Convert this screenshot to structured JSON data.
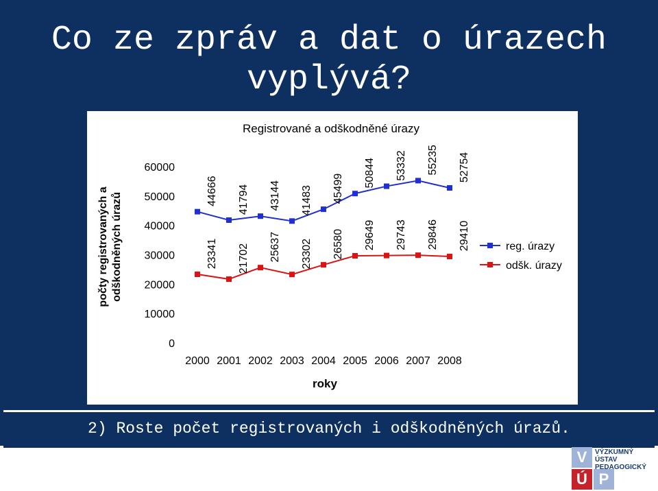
{
  "slide": {
    "title": "Co ze zpráv a dat o úrazech vyplývá?",
    "footer": "2) Roste počet registrovaných i odškodněných úrazů."
  },
  "logo": {
    "tiles": [
      "V",
      "Ú",
      "P"
    ],
    "lines": [
      "VÝZKUMNÝ",
      "ÚSTAV",
      "PEDAGOGICKÝ"
    ]
  },
  "colors": {
    "background": "#0d3060",
    "series_reg": "#1f2fd0",
    "series_odsk": "#d81414",
    "logo_blue": "#9fb3d9",
    "logo_red": "#c4232b"
  },
  "chart_data": {
    "type": "line",
    "title": "Registrované a odškodněné úrazy",
    "xlabel": "roky",
    "ylabel": "počty registrovaných a odškodněných úrazů",
    "categories": [
      "2000",
      "2001",
      "2002",
      "2003",
      "2004",
      "2005",
      "2006",
      "2007",
      "2008"
    ],
    "ylim": [
      0,
      60000
    ],
    "yticks": [
      "0",
      "10000",
      "20000",
      "30000",
      "40000",
      "50000",
      "60000"
    ],
    "grid": false,
    "legend": "right",
    "series": [
      {
        "name": "reg. úrazy",
        "values": [
          44666,
          41794,
          43144,
          41483,
          45499,
          50844,
          53332,
          55235,
          52754
        ],
        "labels": [
          "44666",
          "41794",
          "43144",
          "41483",
          "45499",
          "50844",
          "53332",
          "55235",
          "52754"
        ]
      },
      {
        "name": "odšk. úrazy",
        "values": [
          23341,
          21702,
          25637,
          23302,
          26580,
          29649,
          29743,
          29846,
          29410
        ],
        "labels": [
          "23341",
          "21702",
          "25637",
          "23302",
          "26580",
          "29649",
          "29743",
          "29846",
          "29410"
        ]
      }
    ]
  }
}
